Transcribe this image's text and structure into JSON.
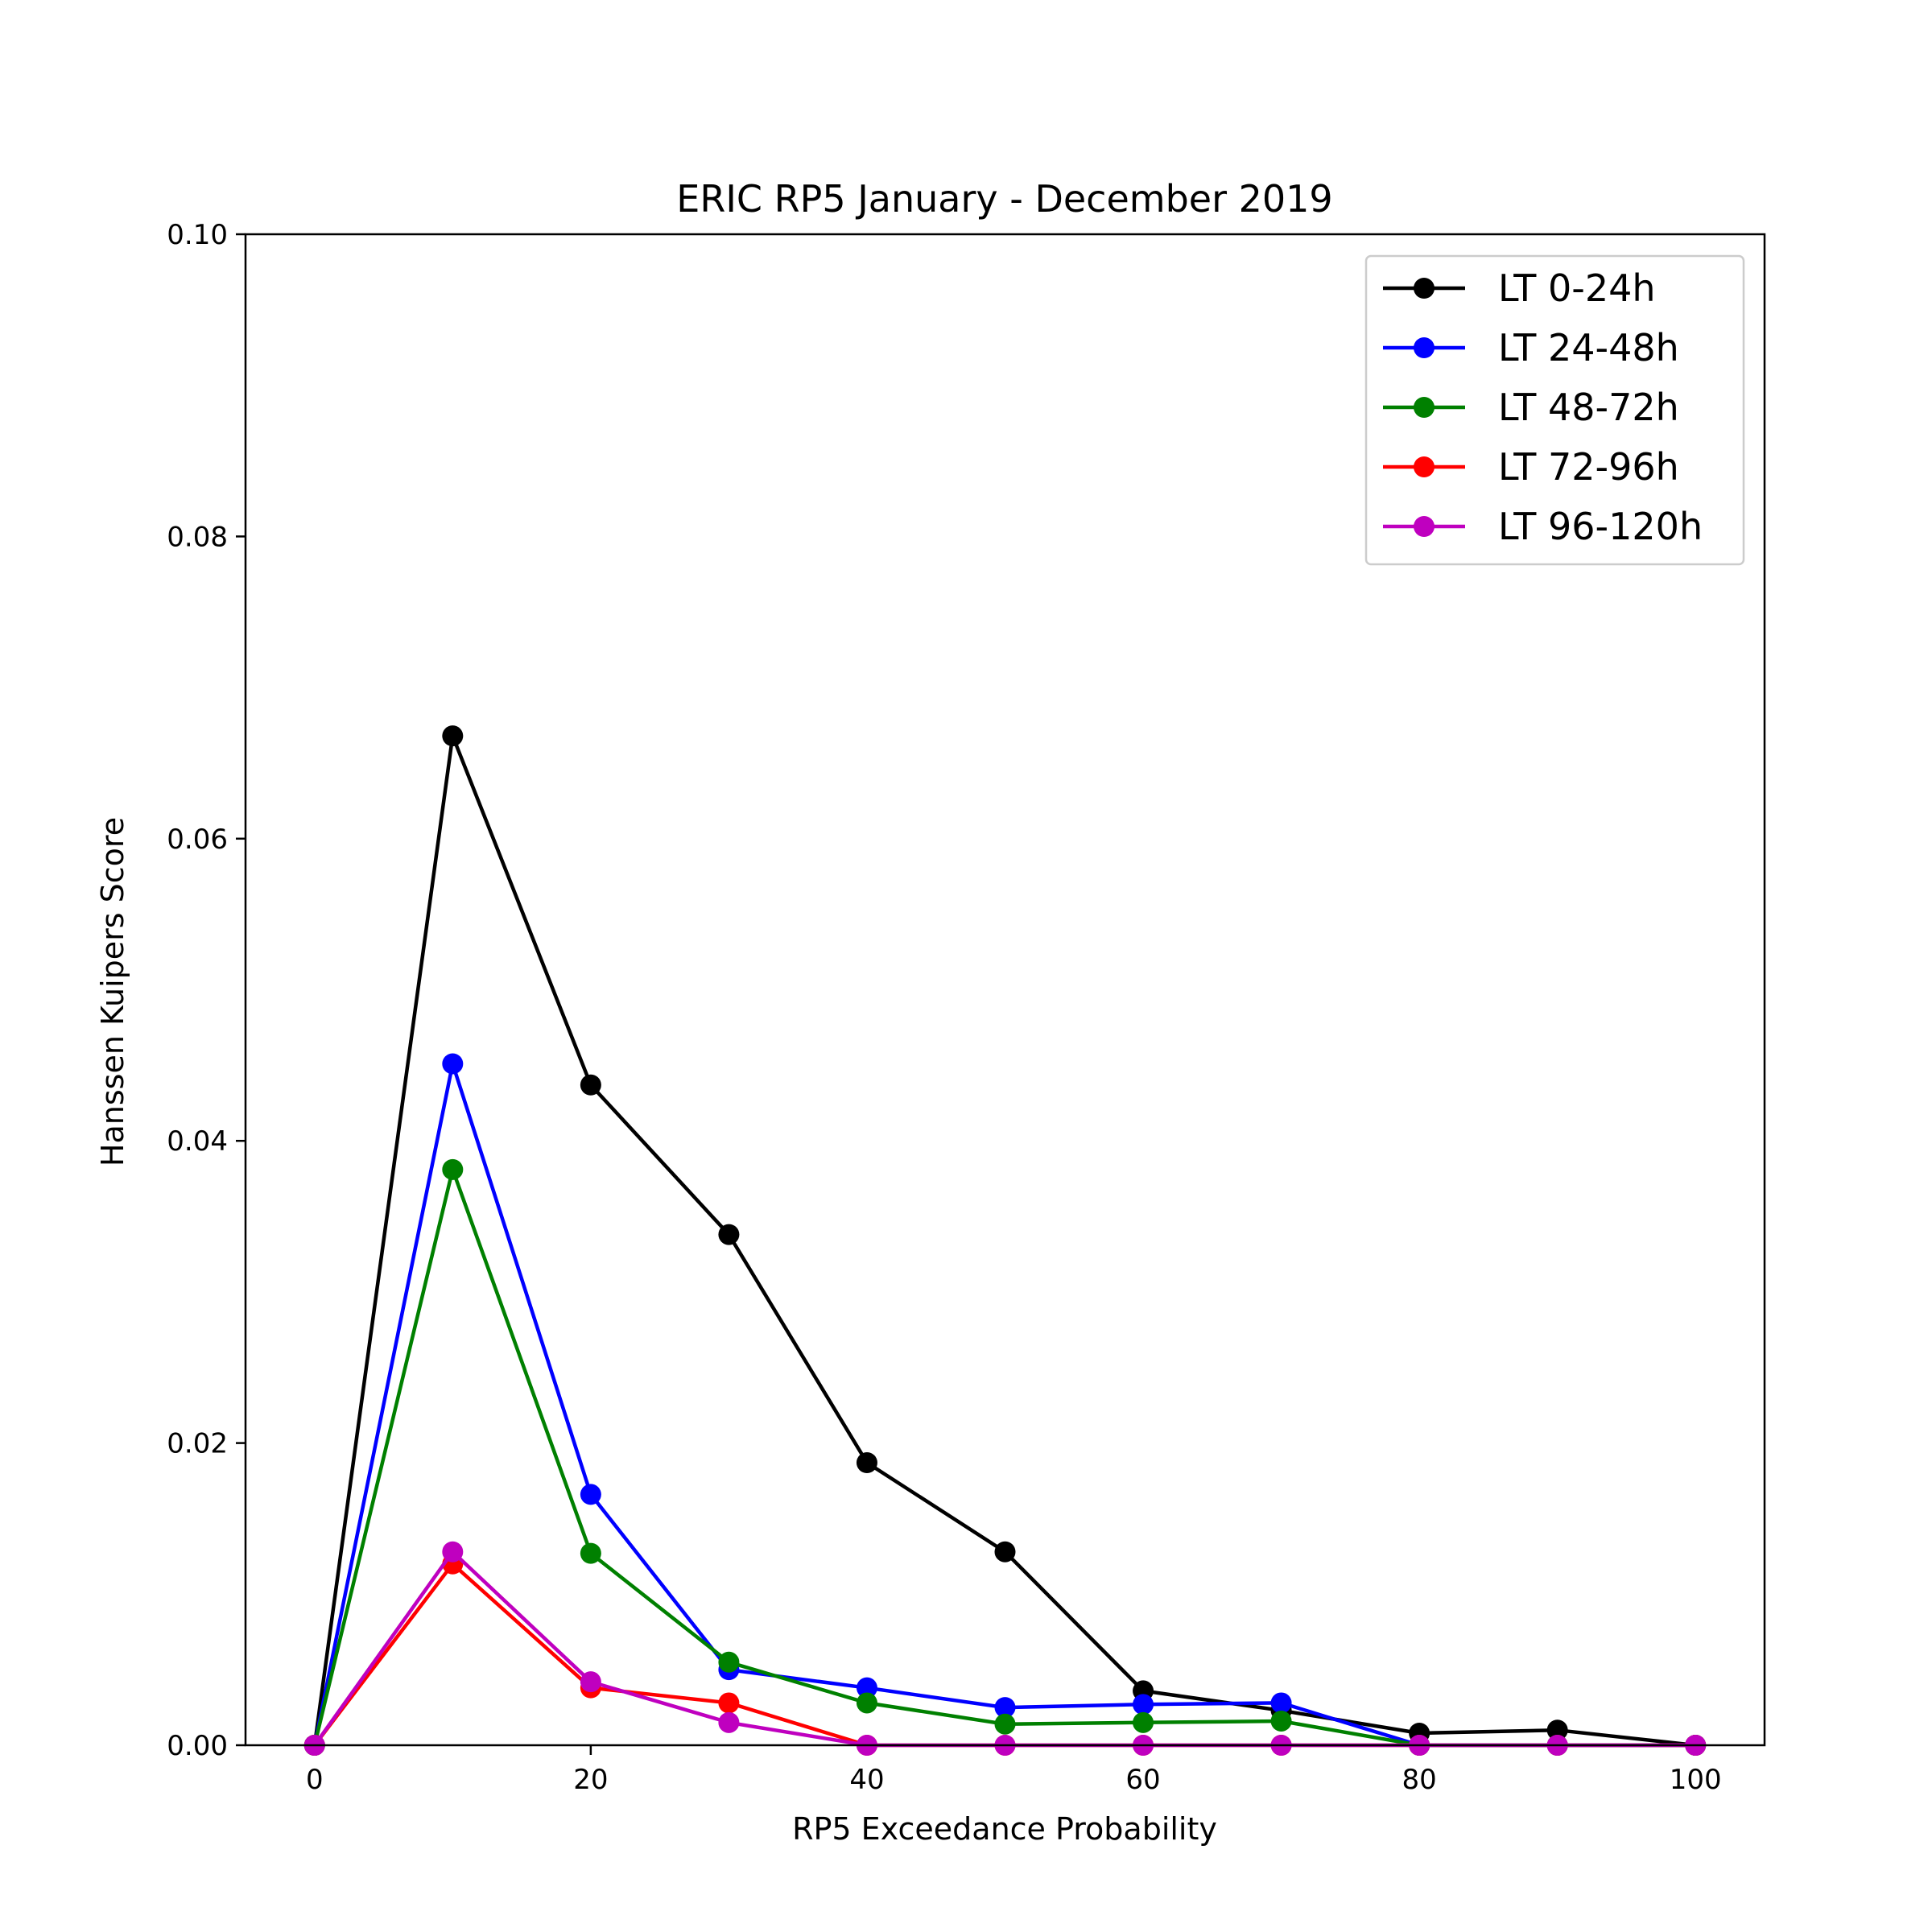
{
  "chart_data": {
    "type": "line",
    "title": "ERIC  RP5 January - December 2019",
    "xlabel": "RP5 Exceedance Probability",
    "ylabel": "Hanssen Kuipers Score",
    "x": [
      0,
      10,
      20,
      30,
      40,
      50,
      60,
      70,
      80,
      90,
      100
    ],
    "xlim": [
      -5,
      105
    ],
    "ylim": [
      0,
      0.1
    ],
    "xticks": [
      "0",
      "20",
      "40",
      "60",
      "80",
      "100"
    ],
    "yticks": [
      "0.00",
      "0.02",
      "0.04",
      "0.06",
      "0.08",
      "0.10"
    ],
    "grid": false,
    "legend_position": "top-right",
    "series": [
      {
        "name": "LT 0-24h",
        "color": "#000000",
        "values": [
          0,
          0.0668,
          0.0437,
          0.0338,
          0.0187,
          0.0128,
          0.0036,
          0.0023,
          0.0008,
          0.001,
          0
        ]
      },
      {
        "name": "LT 24-48h",
        "color": "#0000ff",
        "values": [
          0,
          0.0451,
          0.0166,
          0.005,
          0.0038,
          0.0025,
          0.0027,
          0.0028,
          0,
          0,
          0
        ]
      },
      {
        "name": "LT 48-72h",
        "color": "#008000",
        "values": [
          0,
          0.0381,
          0.0127,
          0.0055,
          0.0028,
          0.0014,
          0.0015,
          0.0016,
          0,
          0,
          0
        ]
      },
      {
        "name": "LT 72-96h",
        "color": "#ff0000",
        "values": [
          0,
          0.012,
          0.0038,
          0.0028,
          0,
          0,
          0,
          0,
          0,
          0,
          0
        ]
      },
      {
        "name": "LT 96-120h",
        "color": "#bf00bf",
        "values": [
          0,
          0.0128,
          0.0042,
          0.0015,
          0,
          0,
          0,
          0,
          0,
          0,
          0
        ]
      }
    ]
  }
}
